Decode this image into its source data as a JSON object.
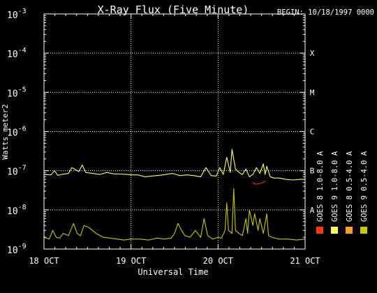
{
  "chart_data": {
    "type": "line",
    "title": "X-Ray Flux (Five Minute)",
    "begin_label": "BEGIN: 10/18/1997 0000",
    "ylabel": "Watts meter2",
    "xlabel": "Universal Time",
    "x_ticks": [
      "18 OCT",
      "19 OCT",
      "20 OCT",
      "21 OCT"
    ],
    "xlim_days": [
      0,
      3
    ],
    "y_log_scale": true,
    "ylim_exponent": [
      -9,
      -3
    ],
    "y_ticks": [
      {
        "base": "10",
        "exp": "-9"
      },
      {
        "base": "10",
        "exp": "-8"
      },
      {
        "base": "10",
        "exp": "-7"
      },
      {
        "base": "10",
        "exp": "-6"
      },
      {
        "base": "10",
        "exp": "-5"
      },
      {
        "base": "10",
        "exp": "-4"
      },
      {
        "base": "10",
        "exp": "-3"
      }
    ],
    "flare_classes": [
      {
        "label": "A",
        "exp": -8
      },
      {
        "label": "B",
        "exp": -7
      },
      {
        "label": "C",
        "exp": -6
      },
      {
        "label": "M",
        "exp": -5
      },
      {
        "label": "X",
        "exp": -4
      }
    ],
    "grid": true,
    "legend_position": "right",
    "legend": [
      {
        "name": "GOES 8 1.0-8.0 A",
        "color": "#ff3c00"
      },
      {
        "name": "GOES 8 0.5-4.0 A",
        "color": "#ffa020"
      },
      {
        "name": "GOES 9 1.0-8.0 A",
        "color": "#ffff60"
      },
      {
        "name": "GOES 9 0.5-4.0 A",
        "color": "#c8c800"
      }
    ],
    "series": [
      {
        "name": "GOES 9 1.0-8.0 A",
        "color": "#ffff60",
        "x": [
          0.0,
          0.08,
          0.12,
          0.16,
          0.2,
          0.28,
          0.32,
          0.4,
          0.44,
          0.48,
          0.56,
          0.64,
          0.72,
          0.8,
          0.88,
          0.96,
          1.0,
          1.08,
          1.16,
          1.24,
          1.32,
          1.4,
          1.48,
          1.56,
          1.64,
          1.72,
          1.8,
          1.86,
          1.92,
          1.98,
          2.02,
          2.06,
          2.1,
          2.14,
          2.16,
          2.2,
          2.24,
          2.28,
          2.32,
          2.36,
          2.4,
          2.44,
          2.48,
          2.52,
          2.54,
          2.56,
          2.6,
          2.64,
          2.7,
          2.78,
          2.86,
          2.94,
          3.0
        ],
        "y": [
          8e-08,
          7.8e-08,
          1e-07,
          7.6e-08,
          8e-08,
          8.5e-08,
          1.2e-07,
          9.5e-08,
          1.4e-07,
          9e-08,
          8.5e-08,
          8e-08,
          9e-08,
          8.3e-08,
          8.2e-08,
          8e-08,
          7.8e-08,
          7.8e-08,
          7e-08,
          7.3e-08,
          7.6e-08,
          8e-08,
          8.5e-08,
          7.5e-08,
          7.8e-08,
          7.5e-08,
          7e-08,
          1.2e-07,
          7.5e-08,
          7.3e-08,
          1.2e-07,
          8e-08,
          2.2e-07,
          9e-08,
          3.5e-07,
          1.1e-07,
          9e-08,
          8e-08,
          1.1e-07,
          7e-08,
          8e-08,
          1.2e-07,
          8.5e-08,
          1.5e-07,
          8e-08,
          1.3e-07,
          7e-08,
          6.5e-08,
          6.5e-08,
          6e-08,
          5.8e-08,
          6e-08,
          6e-08
        ]
      },
      {
        "name": "GOES 9 0.5-4.0 A",
        "color": "#c8c800",
        "x": [
          0.0,
          0.06,
          0.1,
          0.14,
          0.18,
          0.22,
          0.28,
          0.34,
          0.38,
          0.42,
          0.46,
          0.52,
          0.6,
          0.68,
          0.76,
          0.84,
          0.92,
          1.0,
          1.1,
          1.2,
          1.3,
          1.38,
          1.46,
          1.5,
          1.54,
          1.58,
          1.62,
          1.68,
          1.74,
          1.8,
          1.84,
          1.88,
          1.94,
          2.0,
          2.04,
          2.08,
          2.1,
          2.12,
          2.16,
          2.18,
          2.2,
          2.24,
          2.28,
          2.32,
          2.34,
          2.36,
          2.4,
          2.42,
          2.46,
          2.48,
          2.52,
          2.56,
          2.58,
          2.62,
          2.7,
          2.8,
          2.9,
          3.0
        ],
        "y": [
          2e-09,
          1.8e-09,
          3e-09,
          2e-09,
          1.9e-09,
          2.5e-09,
          2.2e-09,
          4.5e-09,
          2.5e-09,
          2.2e-09,
          4e-09,
          3.5e-09,
          2.5e-09,
          2e-09,
          1.9e-09,
          1.8e-09,
          1.7e-09,
          1.8e-09,
          1.8e-09,
          1.7e-09,
          1.9e-09,
          1.8e-09,
          1.9e-09,
          2.5e-09,
          4.5e-09,
          3e-09,
          2.2e-09,
          2e-09,
          3e-09,
          2e-09,
          6e-09,
          2.2e-09,
          1.8e-09,
          2e-09,
          1.9e-09,
          3e-09,
          1.5e-08,
          3e-09,
          2.5e-09,
          3.5e-08,
          3e-09,
          2.5e-09,
          2.2e-09,
          6e-09,
          2.5e-09,
          1e-08,
          4e-09,
          8e-09,
          3e-09,
          6e-09,
          2.5e-09,
          8e-09,
          2.2e-09,
          2e-09,
          1.8e-09,
          1.8e-09,
          1.7e-09,
          1.8e-09
        ]
      },
      {
        "name": "GOES 8 1.0-8.0 A",
        "color": "#ff3c00",
        "x": [
          2.4,
          2.43,
          2.46,
          2.49,
          2.52,
          2.54
        ],
        "y": [
          5e-08,
          4.5e-08,
          4.6e-08,
          4.8e-08,
          5e-08,
          5.5e-08
        ]
      }
    ]
  }
}
